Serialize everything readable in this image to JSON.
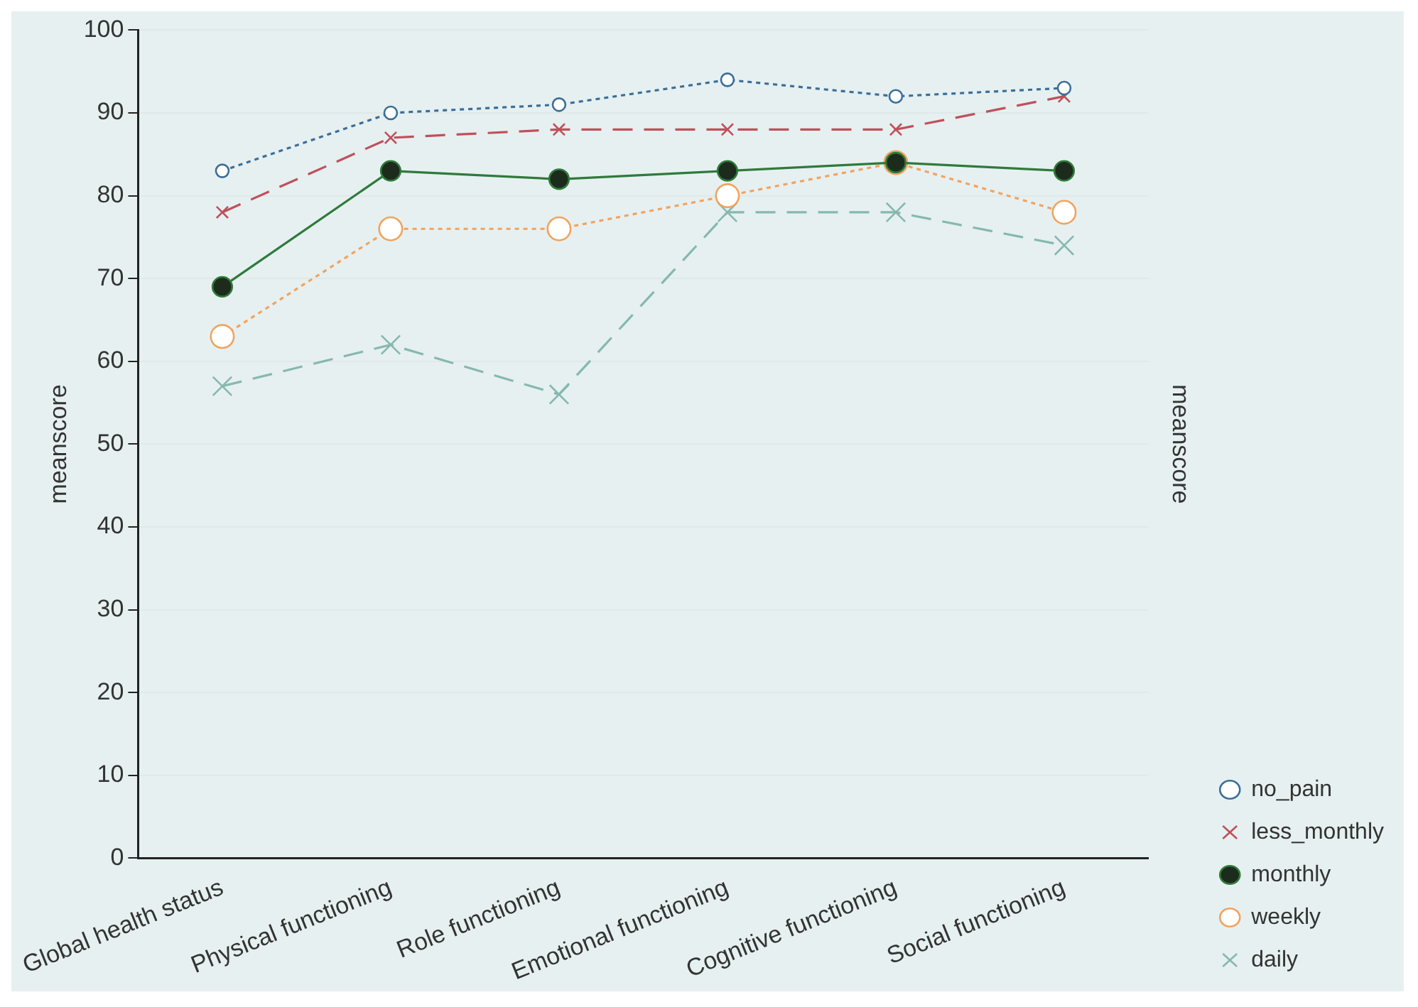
{
  "chart_data": {
    "type": "line",
    "ylabel": "meanscore",
    "y2label": "meanscore",
    "categories": [
      "Global health status",
      "Physical functioning",
      "Role functioning",
      "Emotional functioning",
      "Cognitive functioning",
      "Social functioning"
    ],
    "series": [
      {
        "name": "no_pain",
        "color": "#3b6f98",
        "values": [
          83,
          90,
          91,
          94,
          92,
          93
        ],
        "marker": "circle",
        "line_style": "dotted"
      },
      {
        "name": "less_monthly",
        "color": "#c0505a",
        "values": [
          78,
          87,
          88,
          88,
          88,
          92
        ],
        "marker": "cross",
        "line_style": "dashed"
      },
      {
        "name": "monthly",
        "color": "#2f7a3a",
        "values": [
          69,
          83,
          82,
          83,
          84,
          83
        ],
        "marker": "circle",
        "line_style": "solid"
      },
      {
        "name": "weekly",
        "color": "#f2a35e",
        "values": [
          63,
          76,
          76,
          80,
          84,
          78
        ],
        "marker": "circle",
        "line_style": "dotted"
      },
      {
        "name": "daily",
        "color": "#86b8ae",
        "values": [
          57,
          62,
          56,
          78,
          78,
          74
        ],
        "marker": "cross",
        "line_style": "dashed"
      }
    ],
    "ylim": [
      0,
      100
    ],
    "yticks": [
      0,
      10,
      20,
      30,
      40,
      50,
      60,
      70,
      80,
      90,
      100
    ],
    "grid": "y",
    "legend": "bottom right"
  }
}
